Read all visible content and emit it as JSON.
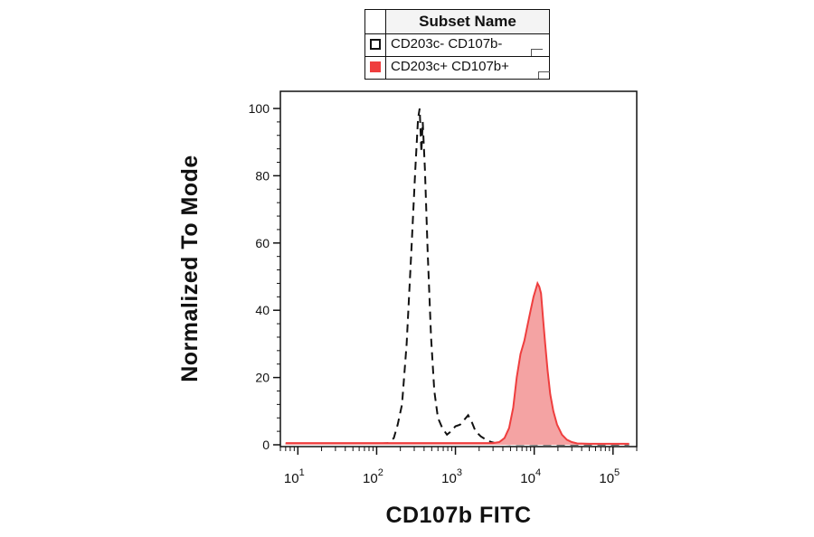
{
  "legend": {
    "title": "Subset Name",
    "entries": [
      {
        "label": "CD203c- CD107b-",
        "style": "dashed-outline",
        "color": "#111111"
      },
      {
        "label": "CD203c+ CD107b+",
        "style": "filled",
        "color": "#ef3e3e"
      }
    ]
  },
  "chart_data": {
    "type": "area",
    "title": "",
    "xlabel": "CD107b FITC",
    "ylabel": "Normalized To Mode",
    "x_scale": "log",
    "xlim": [
      6,
      200000
    ],
    "ylim": [
      0,
      100
    ],
    "yticks": [
      0,
      20,
      40,
      60,
      80,
      100
    ],
    "xticks": [
      {
        "value": 10,
        "base": "10",
        "exp": "1"
      },
      {
        "value": 100,
        "base": "10",
        "exp": "2"
      },
      {
        "value": 1000,
        "base": "10",
        "exp": "3"
      },
      {
        "value": 10000,
        "base": "10",
        "exp": "4"
      },
      {
        "value": 100000,
        "base": "10",
        "exp": "5"
      }
    ],
    "grid": false,
    "legend_position": "top",
    "series": [
      {
        "name": "CD203c- CD107b-",
        "style": "dashed",
        "color": "#111111",
        "points": [
          [
            7,
            0.3
          ],
          [
            20,
            0.3
          ],
          [
            50,
            0.3
          ],
          [
            100,
            0.3
          ],
          [
            140,
            0.5
          ],
          [
            165,
            2
          ],
          [
            185,
            6
          ],
          [
            210,
            12
          ],
          [
            240,
            30
          ],
          [
            275,
            57
          ],
          [
            310,
            82
          ],
          [
            335,
            97
          ],
          [
            352,
            100
          ],
          [
            370,
            87
          ],
          [
            385,
            96
          ],
          [
            410,
            82
          ],
          [
            445,
            57
          ],
          [
            490,
            32
          ],
          [
            540,
            16
          ],
          [
            600,
            8
          ],
          [
            680,
            5
          ],
          [
            780,
            3
          ],
          [
            880,
            4
          ],
          [
            1000,
            5.5
          ],
          [
            1150,
            6
          ],
          [
            1300,
            7.5
          ],
          [
            1450,
            8.8
          ],
          [
            1600,
            7
          ],
          [
            1800,
            4
          ],
          [
            2100,
            2.5
          ],
          [
            2450,
            1.5
          ],
          [
            2850,
            0.8
          ],
          [
            3300,
            0.4
          ],
          [
            5000,
            0.2
          ],
          [
            20000,
            0.1
          ],
          [
            160000,
            0.1
          ]
        ]
      },
      {
        "name": "CD203c+ CD107b+",
        "style": "filled",
        "color": "#ef3e3e",
        "fill": "#f4a3a3",
        "points": [
          [
            7,
            0.5
          ],
          [
            100,
            0.5
          ],
          [
            1000,
            0.5
          ],
          [
            3000,
            0.5
          ],
          [
            3600,
            0.8
          ],
          [
            4200,
            2
          ],
          [
            4800,
            5
          ],
          [
            5400,
            11
          ],
          [
            6000,
            20
          ],
          [
            6700,
            27
          ],
          [
            7500,
            31
          ],
          [
            8300,
            36
          ],
          [
            9000,
            40
          ],
          [
            9800,
            44
          ],
          [
            10400,
            46
          ],
          [
            11000,
            48
          ],
          [
            11600,
            47
          ],
          [
            12200,
            45
          ],
          [
            13000,
            37
          ],
          [
            13800,
            30
          ],
          [
            14800,
            22
          ],
          [
            16000,
            15
          ],
          [
            17500,
            10
          ],
          [
            19500,
            6
          ],
          [
            22500,
            3
          ],
          [
            26000,
            1.5
          ],
          [
            30000,
            0.8
          ],
          [
            35000,
            0.4
          ],
          [
            50000,
            0.3
          ],
          [
            160000,
            0.3
          ]
        ]
      }
    ]
  }
}
